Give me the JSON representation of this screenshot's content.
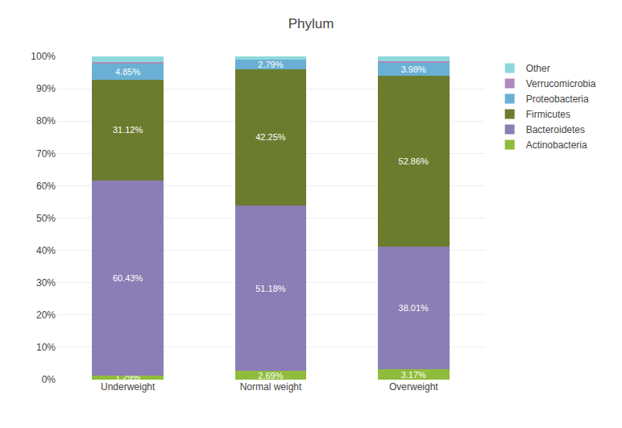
{
  "chart_data": {
    "type": "bar",
    "title": "Phylum",
    "stacked": true,
    "grid": true,
    "legend": "right",
    "data_labels": true,
    "categories": [
      "Underweight",
      "Normal weight",
      "Overweight"
    ],
    "series": [
      {
        "name": "Actinobacteria",
        "color": "#8fbc3a",
        "values": [
          1.29,
          2.69,
          3.17
        ],
        "value_labels": [
          "1.29%",
          "2.69%",
          "3.17%"
        ]
      },
      {
        "name": "Bacteroidetes",
        "color": "#8b7db5",
        "values": [
          60.43,
          51.18,
          38.01
        ],
        "value_labels": [
          "60.43%",
          "51.18%",
          "38.01%"
        ]
      },
      {
        "name": "Firmicutes",
        "color": "#6b7c2e",
        "values": [
          31.12,
          42.25,
          52.86
        ],
        "value_labels": [
          "31.12%",
          "42.25%",
          "52.86%"
        ]
      },
      {
        "name": "Proteobacteria",
        "color": "#6aafd4",
        "values": [
          4.85,
          2.79,
          3.98
        ],
        "value_labels": [
          "4.85%",
          "2.79%",
          "3.98%"
        ]
      },
      {
        "name": "Verrucomicrobia",
        "color": "#b08abd",
        "values": [
          0.62,
          0.0,
          0.5
        ]
      },
      {
        "name": "Other",
        "color": "#8dd8dc",
        "values": [
          1.69,
          1.09,
          1.48
        ]
      }
    ],
    "ylim": [
      0,
      100
    ],
    "yticks": [
      {
        "value": 0,
        "label": "0%"
      },
      {
        "value": 10,
        "label": "10%"
      },
      {
        "value": 20,
        "label": "20%"
      },
      {
        "value": 30,
        "label": "30%"
      },
      {
        "value": 40,
        "label": "40%"
      },
      {
        "value": 50,
        "label": "50%"
      },
      {
        "value": 60,
        "label": "60%"
      },
      {
        "value": 70,
        "label": "70%"
      },
      {
        "value": 80,
        "label": "80%"
      },
      {
        "value": 90,
        "label": "90%"
      },
      {
        "value": 100,
        "label": "100%"
      }
    ]
  }
}
